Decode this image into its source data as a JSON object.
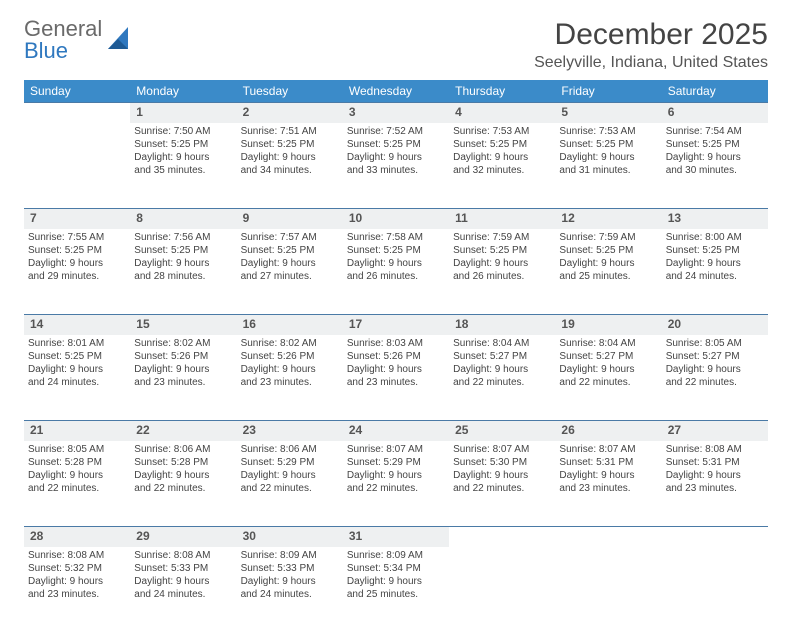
{
  "brand": {
    "part1": "General",
    "part2": "Blue"
  },
  "title": "December 2025",
  "location": "Seelyville, Indiana, United States",
  "style": {
    "header_bg": "#3b8bc9",
    "header_fg": "#ffffff",
    "daynum_bg": "#eef0f1",
    "rule_color": "#4a7aa6",
    "body_font_size": 10,
    "title_font_size": 30,
    "location_font_size": 16
  },
  "weekdays": [
    "Sunday",
    "Monday",
    "Tuesday",
    "Wednesday",
    "Thursday",
    "Friday",
    "Saturday"
  ],
  "weeks": [
    {
      "nums": [
        "",
        "1",
        "2",
        "3",
        "4",
        "5",
        "6"
      ],
      "cells": [
        null,
        {
          "sunrise": "Sunrise: 7:50 AM",
          "sunset": "Sunset: 5:25 PM",
          "day1": "Daylight: 9 hours",
          "day2": "and 35 minutes."
        },
        {
          "sunrise": "Sunrise: 7:51 AM",
          "sunset": "Sunset: 5:25 PM",
          "day1": "Daylight: 9 hours",
          "day2": "and 34 minutes."
        },
        {
          "sunrise": "Sunrise: 7:52 AM",
          "sunset": "Sunset: 5:25 PM",
          "day1": "Daylight: 9 hours",
          "day2": "and 33 minutes."
        },
        {
          "sunrise": "Sunrise: 7:53 AM",
          "sunset": "Sunset: 5:25 PM",
          "day1": "Daylight: 9 hours",
          "day2": "and 32 minutes."
        },
        {
          "sunrise": "Sunrise: 7:53 AM",
          "sunset": "Sunset: 5:25 PM",
          "day1": "Daylight: 9 hours",
          "day2": "and 31 minutes."
        },
        {
          "sunrise": "Sunrise: 7:54 AM",
          "sunset": "Sunset: 5:25 PM",
          "day1": "Daylight: 9 hours",
          "day2": "and 30 minutes."
        }
      ]
    },
    {
      "nums": [
        "7",
        "8",
        "9",
        "10",
        "11",
        "12",
        "13"
      ],
      "cells": [
        {
          "sunrise": "Sunrise: 7:55 AM",
          "sunset": "Sunset: 5:25 PM",
          "day1": "Daylight: 9 hours",
          "day2": "and 29 minutes."
        },
        {
          "sunrise": "Sunrise: 7:56 AM",
          "sunset": "Sunset: 5:25 PM",
          "day1": "Daylight: 9 hours",
          "day2": "and 28 minutes."
        },
        {
          "sunrise": "Sunrise: 7:57 AM",
          "sunset": "Sunset: 5:25 PM",
          "day1": "Daylight: 9 hours",
          "day2": "and 27 minutes."
        },
        {
          "sunrise": "Sunrise: 7:58 AM",
          "sunset": "Sunset: 5:25 PM",
          "day1": "Daylight: 9 hours",
          "day2": "and 26 minutes."
        },
        {
          "sunrise": "Sunrise: 7:59 AM",
          "sunset": "Sunset: 5:25 PM",
          "day1": "Daylight: 9 hours",
          "day2": "and 26 minutes."
        },
        {
          "sunrise": "Sunrise: 7:59 AM",
          "sunset": "Sunset: 5:25 PM",
          "day1": "Daylight: 9 hours",
          "day2": "and 25 minutes."
        },
        {
          "sunrise": "Sunrise: 8:00 AM",
          "sunset": "Sunset: 5:25 PM",
          "day1": "Daylight: 9 hours",
          "day2": "and 24 minutes."
        }
      ]
    },
    {
      "nums": [
        "14",
        "15",
        "16",
        "17",
        "18",
        "19",
        "20"
      ],
      "cells": [
        {
          "sunrise": "Sunrise: 8:01 AM",
          "sunset": "Sunset: 5:25 PM",
          "day1": "Daylight: 9 hours",
          "day2": "and 24 minutes."
        },
        {
          "sunrise": "Sunrise: 8:02 AM",
          "sunset": "Sunset: 5:26 PM",
          "day1": "Daylight: 9 hours",
          "day2": "and 23 minutes."
        },
        {
          "sunrise": "Sunrise: 8:02 AM",
          "sunset": "Sunset: 5:26 PM",
          "day1": "Daylight: 9 hours",
          "day2": "and 23 minutes."
        },
        {
          "sunrise": "Sunrise: 8:03 AM",
          "sunset": "Sunset: 5:26 PM",
          "day1": "Daylight: 9 hours",
          "day2": "and 23 minutes."
        },
        {
          "sunrise": "Sunrise: 8:04 AM",
          "sunset": "Sunset: 5:27 PM",
          "day1": "Daylight: 9 hours",
          "day2": "and 22 minutes."
        },
        {
          "sunrise": "Sunrise: 8:04 AM",
          "sunset": "Sunset: 5:27 PM",
          "day1": "Daylight: 9 hours",
          "day2": "and 22 minutes."
        },
        {
          "sunrise": "Sunrise: 8:05 AM",
          "sunset": "Sunset: 5:27 PM",
          "day1": "Daylight: 9 hours",
          "day2": "and 22 minutes."
        }
      ]
    },
    {
      "nums": [
        "21",
        "22",
        "23",
        "24",
        "25",
        "26",
        "27"
      ],
      "cells": [
        {
          "sunrise": "Sunrise: 8:05 AM",
          "sunset": "Sunset: 5:28 PM",
          "day1": "Daylight: 9 hours",
          "day2": "and 22 minutes."
        },
        {
          "sunrise": "Sunrise: 8:06 AM",
          "sunset": "Sunset: 5:28 PM",
          "day1": "Daylight: 9 hours",
          "day2": "and 22 minutes."
        },
        {
          "sunrise": "Sunrise: 8:06 AM",
          "sunset": "Sunset: 5:29 PM",
          "day1": "Daylight: 9 hours",
          "day2": "and 22 minutes."
        },
        {
          "sunrise": "Sunrise: 8:07 AM",
          "sunset": "Sunset: 5:29 PM",
          "day1": "Daylight: 9 hours",
          "day2": "and 22 minutes."
        },
        {
          "sunrise": "Sunrise: 8:07 AM",
          "sunset": "Sunset: 5:30 PM",
          "day1": "Daylight: 9 hours",
          "day2": "and 22 minutes."
        },
        {
          "sunrise": "Sunrise: 8:07 AM",
          "sunset": "Sunset: 5:31 PM",
          "day1": "Daylight: 9 hours",
          "day2": "and 23 minutes."
        },
        {
          "sunrise": "Sunrise: 8:08 AM",
          "sunset": "Sunset: 5:31 PM",
          "day1": "Daylight: 9 hours",
          "day2": "and 23 minutes."
        }
      ]
    },
    {
      "nums": [
        "28",
        "29",
        "30",
        "31",
        "",
        "",
        ""
      ],
      "cells": [
        {
          "sunrise": "Sunrise: 8:08 AM",
          "sunset": "Sunset: 5:32 PM",
          "day1": "Daylight: 9 hours",
          "day2": "and 23 minutes."
        },
        {
          "sunrise": "Sunrise: 8:08 AM",
          "sunset": "Sunset: 5:33 PM",
          "day1": "Daylight: 9 hours",
          "day2": "and 24 minutes."
        },
        {
          "sunrise": "Sunrise: 8:09 AM",
          "sunset": "Sunset: 5:33 PM",
          "day1": "Daylight: 9 hours",
          "day2": "and 24 minutes."
        },
        {
          "sunrise": "Sunrise: 8:09 AM",
          "sunset": "Sunset: 5:34 PM",
          "day1": "Daylight: 9 hours",
          "day2": "and 25 minutes."
        },
        null,
        null,
        null
      ]
    }
  ]
}
